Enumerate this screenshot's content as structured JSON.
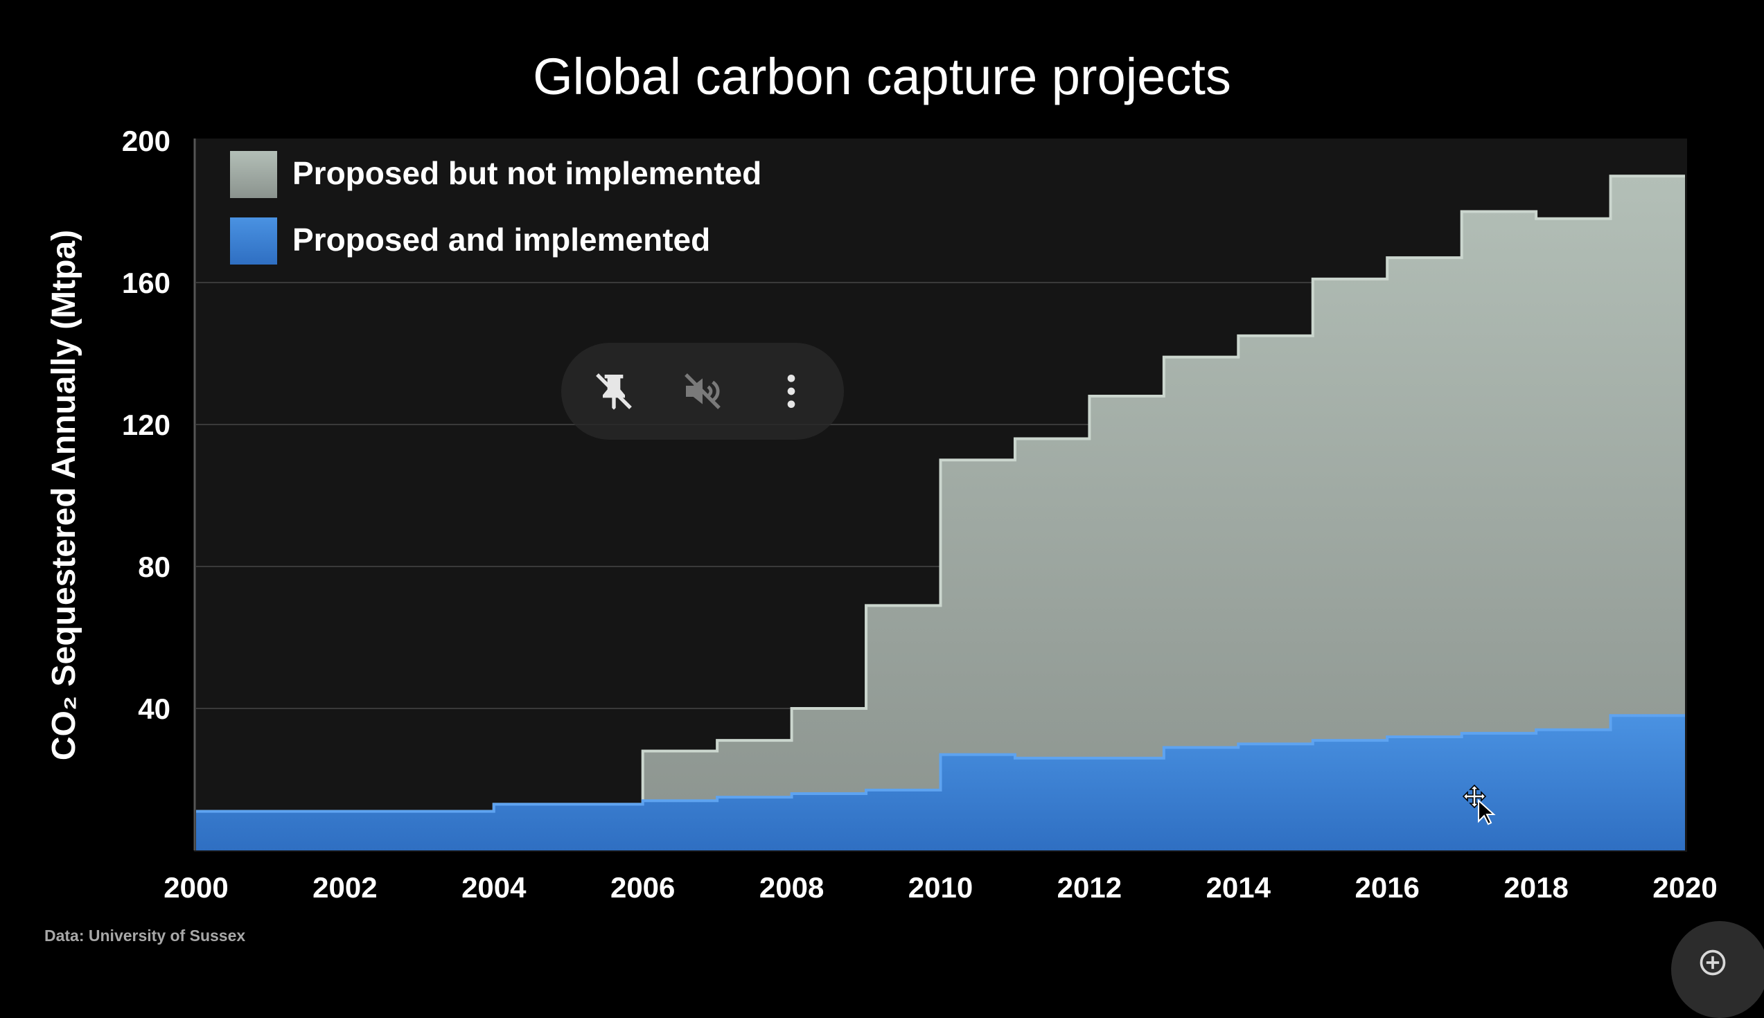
{
  "source_note": "Data: University of Sussex",
  "controls": {
    "pin_icon": "pin-off-icon",
    "mute_icon": "volume-off-icon",
    "more_icon": "more-vertical-icon",
    "corner_icon": "zoom-in-icon"
  },
  "chart_data": {
    "type": "area",
    "step": true,
    "stacked": true,
    "title": "Global carbon capture projects",
    "ylabel": "CO₂ Sequestered Annually (Mtpa)",
    "xlabel": "",
    "xlim": [
      2000,
      2020
    ],
    "ylim": [
      0,
      200
    ],
    "x_ticks": [
      2000,
      2002,
      2004,
      2006,
      2008,
      2010,
      2012,
      2014,
      2016,
      2018,
      2020
    ],
    "y_ticks": [
      40,
      80,
      120,
      160,
      200
    ],
    "grid": "horizontal",
    "legend_position": "top-left",
    "background_color": "#131313",
    "x": [
      2000,
      2001,
      2002,
      2003,
      2004,
      2005,
      2006,
      2007,
      2008,
      2009,
      2010,
      2011,
      2012,
      2013,
      2014,
      2015,
      2016,
      2017,
      2018,
      2019
    ],
    "series": [
      {
        "name": "Proposed and implemented",
        "color": "#3f84d4",
        "values": [
          11,
          11,
          11,
          11,
          13,
          13,
          14,
          15,
          16,
          17,
          27,
          26,
          26,
          29,
          30,
          31,
          32,
          33,
          34,
          38
        ]
      },
      {
        "name": "Proposed but not implemented",
        "color": "#9faaa3",
        "values": [
          0,
          0,
          0,
          0,
          0,
          0,
          14,
          16,
          24,
          52,
          83,
          90,
          102,
          110,
          115,
          130,
          135,
          147,
          144,
          152
        ]
      }
    ],
    "totals": [
      11,
      11,
      11,
      11,
      13,
      13,
      28,
      31,
      40,
      69,
      110,
      116,
      128,
      139,
      145,
      161,
      167,
      180,
      178,
      190
    ]
  }
}
